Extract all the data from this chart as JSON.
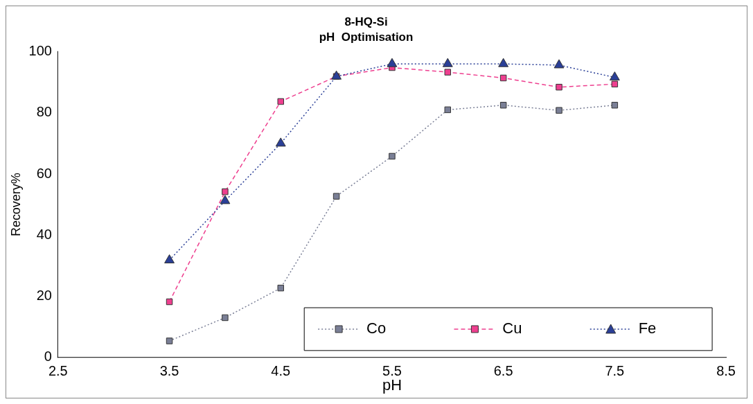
{
  "chart_data": {
    "type": "line",
    "title": "8-HQ-Si",
    "subtitle": "pH  Optimisation",
    "xlabel": "pH",
    "ylabel": "Recovery%",
    "x": [
      3.5,
      4.0,
      4.5,
      5.0,
      5.5,
      6.0,
      6.5,
      7.0,
      7.5
    ],
    "series": [
      {
        "name": "Co",
        "color": "#7a7f96",
        "marker": "square",
        "line_style": "dotted",
        "values": [
          5.4,
          13,
          22.7,
          52.7,
          65.8,
          81,
          82.5,
          80.8,
          82.5
        ]
      },
      {
        "name": "Cu",
        "color": "#ee3f8f",
        "marker": "square",
        "line_style": "dashed",
        "values": [
          18.2,
          54.2,
          83.7,
          91.9,
          94.8,
          93.3,
          91.4,
          88.4,
          89.4
        ]
      },
      {
        "name": "Fe",
        "color": "#2a3f97",
        "marker": "triangle",
        "line_style": "dotted",
        "values": [
          31.8,
          51.2,
          70,
          91.9,
          96,
          96,
          96,
          95.6,
          91.6
        ]
      }
    ],
    "xlim": [
      2.5,
      8.5
    ],
    "xticks": [
      2.5,
      3.5,
      4.5,
      5.5,
      6.5,
      7.5,
      8.5
    ],
    "ylim": [
      0,
      100
    ],
    "yticks": [
      0,
      20,
      40,
      60,
      80,
      100
    ],
    "grid": false,
    "legend": "bottom right"
  }
}
